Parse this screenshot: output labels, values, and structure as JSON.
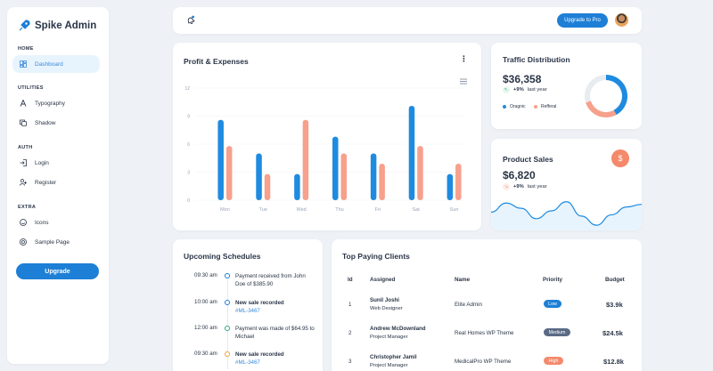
{
  "app": {
    "title": "Spike Admin"
  },
  "sidebar": {
    "sections": [
      {
        "title": "HOME",
        "items": [
          {
            "label": "Dashboard",
            "icon": "layout-dashboard-icon",
            "active": true
          }
        ]
      },
      {
        "title": "UTILITIES",
        "items": [
          {
            "label": "Typography",
            "icon": "typography-icon"
          },
          {
            "label": "Shadow",
            "icon": "copy-icon"
          }
        ]
      },
      {
        "title": "AUTH",
        "items": [
          {
            "label": "Login",
            "icon": "login-icon"
          },
          {
            "label": "Register",
            "icon": "user-plus-icon"
          }
        ]
      },
      {
        "title": "EXTRA",
        "items": [
          {
            "label": "Icons",
            "icon": "mood-happy-icon"
          },
          {
            "label": "Sample Page",
            "icon": "aperture-icon"
          }
        ]
      }
    ],
    "upgrade_label": "Upgrade"
  },
  "header": {
    "pro_label": "Upgrade to Pro"
  },
  "profit": {
    "title": "Profit & Expenses",
    "chart_data": {
      "type": "bar",
      "categories": [
        "Mon",
        "Tue",
        "Wed",
        "Thu",
        "Fri",
        "Sat",
        "Sun"
      ],
      "series": [
        {
          "values": [
            8.6,
            5.0,
            2.8,
            6.8,
            5.0,
            10.1,
            2.8
          ],
          "color": "#1e8be0"
        },
        {
          "values": [
            5.8,
            2.8,
            8.6,
            5.0,
            3.9,
            5.8,
            3.9
          ],
          "color": "#f7a08c"
        }
      ],
      "yticks": [
        "12",
        "9",
        "6",
        "3",
        "0"
      ],
      "ylim": [
        0,
        12
      ]
    }
  },
  "traffic": {
    "title": "Traffic Distribution",
    "value": "$36,358",
    "delta": "+9%",
    "delta_label": "last year",
    "legend": [
      {
        "label": "Oragnic",
        "color": "#1e8be0"
      },
      {
        "label": "Refferal",
        "color": "#f7a08c"
      }
    ],
    "chart_data": {
      "type": "pie",
      "labels": [
        "Oragnic",
        "Refferal",
        "Other"
      ],
      "values": [
        42,
        28,
        30
      ],
      "colors": [
        "#1e8be0",
        "#f7a08c",
        "#e8ecf1"
      ]
    }
  },
  "sales": {
    "title": "Product Sales",
    "value": "$6,820",
    "delta": "+9%",
    "delta_label": "last year",
    "chart_data": {
      "type": "area",
      "values": [
        14,
        21,
        17,
        9,
        15,
        22,
        11,
        4,
        12,
        18,
        20
      ],
      "color": "#1e8be0"
    }
  },
  "schedules": {
    "title": "Upcoming Schedules",
    "items": [
      {
        "time": "09:30 am",
        "text": "Payment received from John Doe of $385.90",
        "link": "",
        "dot_color": "#1e7fd6"
      },
      {
        "time": "10:00 am",
        "text": "New sale recorded",
        "link": "#ML-3467",
        "bold": true,
        "dot_color": "#1e7fd6"
      },
      {
        "time": "12:00 am",
        "text": "Payment was made of $64.95 to Michael",
        "link": "",
        "dot_color": "#2ca87f"
      },
      {
        "time": "09:30 am",
        "text": "New sale recorded",
        "link": "#ML-3467",
        "bold": true,
        "dot_color": "#f0a030"
      }
    ]
  },
  "clients": {
    "title": "Top Paying Clients",
    "headers": {
      "id": "Id",
      "assigned": "Assigned",
      "name": "Name",
      "priority": "Priority",
      "budget": "Budget"
    },
    "rows": [
      {
        "id": "1",
        "assigned": "Sunil Joshi",
        "role": "Web Designer",
        "name": "Elite Admin",
        "priority": "Low",
        "priority_color": "#1e7fd6",
        "budget": "$3.9k"
      },
      {
        "id": "2",
        "assigned": "Andrew McDownland",
        "role": "Project Manager",
        "name": "Real Homes WP Theme",
        "priority": "Medium",
        "priority_color": "#5a6a85",
        "budget": "$24.5k"
      },
      {
        "id": "3",
        "assigned": "Christopher Jamil",
        "role": "Project Manager",
        "name": "MedicalPro WP Theme",
        "priority": "High",
        "priority_color": "#f4896b",
        "budget": "$12.8k"
      }
    ]
  }
}
